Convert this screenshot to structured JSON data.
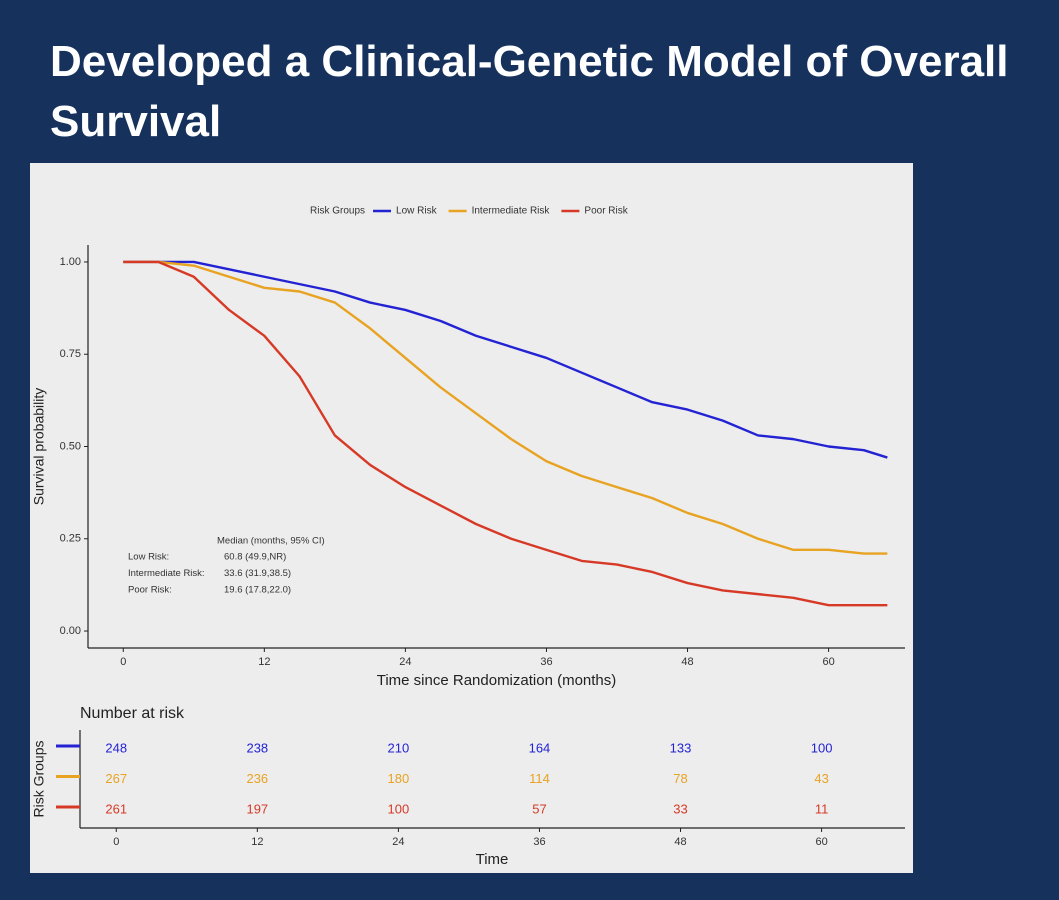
{
  "header": {
    "title": "Developed a Clinical-Genetic Model of Overall Survival"
  },
  "chart_data": {
    "type": "line",
    "legend_title": "Risk Groups",
    "legend_position": "top",
    "xlabel": "Time since Randomization (months)",
    "ylabel": "Survival probability",
    "x": [
      0,
      3,
      6,
      9,
      12,
      15,
      18,
      21,
      24,
      27,
      30,
      33,
      36,
      39,
      42,
      45,
      48,
      51,
      54,
      57,
      60,
      63,
      65
    ],
    "series": [
      {
        "name": "Low Risk",
        "color": "#2323d4",
        "values": [
          1,
          1,
          1,
          0.98,
          0.96,
          0.94,
          0.92,
          0.89,
          0.87,
          0.84,
          0.8,
          0.77,
          0.74,
          0.7,
          0.66,
          0.62,
          0.6,
          0.57,
          0.53,
          0.52,
          0.5,
          0.49,
          0.47
        ]
      },
      {
        "name": "Intermediate Risk",
        "color": "#e8a322",
        "values": [
          1,
          1,
          0.99,
          0.96,
          0.93,
          0.92,
          0.89,
          0.82,
          0.74,
          0.66,
          0.59,
          0.52,
          0.46,
          0.42,
          0.39,
          0.36,
          0.32,
          0.29,
          0.25,
          0.22,
          0.22,
          0.21,
          0.21
        ]
      },
      {
        "name": "Poor Risk",
        "color": "#d63a27",
        "values": [
          1,
          1,
          0.96,
          0.87,
          0.8,
          0.69,
          0.53,
          0.45,
          0.39,
          0.34,
          0.29,
          0.25,
          0.22,
          0.19,
          0.18,
          0.16,
          0.13,
          0.11,
          0.1,
          0.09,
          0.07,
          0.07,
          0.07
        ]
      }
    ],
    "xlim": [
      -3,
      66.5
    ],
    "xticks": [
      0,
      12,
      24,
      36,
      48,
      60
    ],
    "ylim": [
      -0.046,
      1.046
    ],
    "yticks": [
      {
        "value": 0,
        "label": "0.00"
      },
      0.25,
      {
        "value": 0.5,
        "label": "0.50"
      },
      0.75,
      {
        "value": 1,
        "label": "1.00"
      }
    ],
    "grid": false,
    "median_table": {
      "title": "Median (months, 95% CI)",
      "rows": [
        {
          "label": "Low Risk:",
          "value": "60.8 (49.9,NR)"
        },
        {
          "label": "Intermediate Risk:",
          "value": "33.6 (31.9,38.5)"
        },
        {
          "label": "Poor Risk:",
          "value": "19.6 (17.8,22.0)"
        }
      ]
    },
    "risk_table": {
      "title": "Number at risk",
      "ylabel": "Risk Groups",
      "xlabel": "Time",
      "rows": [
        [
          248,
          238,
          210,
          164,
          133,
          100
        ],
        [
          267,
          236,
          180,
          114,
          78,
          43
        ],
        [
          261,
          197,
          100,
          57,
          33,
          11
        ]
      ]
    }
  }
}
